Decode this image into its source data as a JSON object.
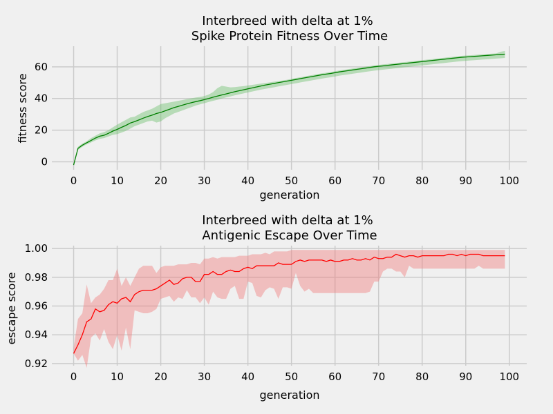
{
  "chart_data": [
    {
      "type": "line",
      "title_line1": "Interbreed with delta at 1%",
      "title_line2": "Spike Protein Fitness Over Time",
      "xlabel": "generation",
      "ylabel": "fitness score",
      "xlim": [
        -5,
        104
      ],
      "ylim": [
        -5,
        73
      ],
      "xticks": [
        0,
        10,
        20,
        30,
        40,
        50,
        60,
        70,
        80,
        90,
        100
      ],
      "yticks": [
        0,
        20,
        40,
        60
      ],
      "line_color": "#007f00",
      "band_color": "#70c070",
      "series": [
        {
          "x": [
            0,
            1,
            2,
            3,
            4,
            5,
            6,
            7,
            8,
            9,
            10,
            11,
            12,
            13,
            14,
            15,
            16,
            17,
            18,
            19,
            20,
            21,
            22,
            23,
            24,
            25,
            26,
            27,
            28,
            29,
            30,
            31,
            32,
            33,
            34,
            35,
            36,
            37,
            38,
            39,
            40,
            41,
            42,
            43,
            44,
            45,
            46,
            47,
            48,
            49,
            50,
            51,
            52,
            53,
            54,
            55,
            56,
            57,
            58,
            59,
            60,
            61,
            62,
            63,
            64,
            65,
            66,
            67,
            68,
            69,
            70,
            71,
            72,
            73,
            74,
            75,
            76,
            77,
            78,
            79,
            80,
            81,
            82,
            83,
            84,
            85,
            86,
            87,
            88,
            89,
            90,
            91,
            92,
            93,
            94,
            95,
            96,
            97,
            98,
            99
          ],
          "values": [
            -2,
            8.5,
            10.5,
            12,
            13.5,
            15,
            16.2,
            16.8,
            18,
            19.4,
            20.5,
            21.8,
            23,
            24.5,
            25.4,
            26.5,
            27.6,
            28.6,
            29.5,
            30.5,
            31.2,
            32.2,
            33.2,
            34.2,
            35,
            35.8,
            36.6,
            37.3,
            38,
            38.6,
            39.3,
            40,
            40.8,
            41.5,
            42.2,
            42.9,
            43.6,
            44.3,
            44.9,
            45.5,
            46.1,
            46.7,
            47.3,
            47.9,
            48.5,
            49,
            49.5,
            50,
            50.5,
            51,
            51.5,
            52,
            52.5,
            53,
            53.5,
            54,
            54.5,
            55,
            55.4,
            55.8,
            56.3,
            56.8,
            57.2,
            57.6,
            58,
            58.4,
            58.8,
            59.2,
            59.6,
            60,
            60.3,
            60.6,
            60.9,
            61.2,
            61.5,
            61.8,
            62.1,
            62.4,
            62.7,
            63,
            63.3,
            63.6,
            63.9,
            64.2,
            64.5,
            64.8,
            65.1,
            65.4,
            65.7,
            66,
            66.2,
            66.4,
            66.6,
            66.8,
            67,
            67.2,
            67.4,
            67.6,
            67.8,
            68
          ],
          "lower": [
            -2,
            7.5,
            9.5,
            11,
            12.2,
            13.5,
            14.5,
            15,
            16,
            17,
            17.5,
            18.5,
            19.5,
            21,
            22.5,
            23.5,
            24.5,
            25.5,
            26,
            24.8,
            25.5,
            27.5,
            29,
            30.5,
            31.5,
            32.5,
            33.5,
            34.5,
            35.5,
            36.3,
            37,
            37.8,
            38.5,
            39.2,
            40,
            40.7,
            41.3,
            42,
            42.6,
            43.2,
            43.8,
            44.4,
            45,
            45.6,
            46.1,
            46.6,
            47.1,
            47.6,
            48.1,
            48.6,
            49.1,
            49.6,
            50.1,
            50.6,
            51.1,
            51.6,
            52.1,
            52.6,
            53,
            53.4,
            53.9,
            54.4,
            54.8,
            55.2,
            55.6,
            56,
            56.4,
            56.8,
            57.2,
            57.6,
            57.9,
            58.2,
            58.5,
            58.8,
            59.1,
            59.4,
            59.7,
            60,
            60.3,
            60.6,
            60.9,
            61.2,
            61.5,
            61.8,
            62.1,
            62.4,
            62.7,
            63,
            63.3,
            63.6,
            63.8,
            64,
            64.2,
            64.4,
            64.6,
            64.8,
            65,
            65.2,
            65.4,
            65.6
          ],
          "upper": [
            -1,
            9.5,
            11.5,
            13,
            15,
            16.5,
            18,
            18.8,
            20,
            21.8,
            23.5,
            25,
            26.5,
            28,
            28.5,
            30,
            31.5,
            32.5,
            33.5,
            35,
            36.5,
            37,
            37.5,
            38,
            38.5,
            39,
            39.6,
            40.1,
            40.6,
            41,
            41.5,
            42.5,
            44,
            46.5,
            48,
            47.5,
            47,
            47.2,
            47.5,
            47.8,
            48.2,
            48.6,
            49,
            49.4,
            49.8,
            50.2,
            50.6,
            51,
            51.4,
            51.8,
            52.4,
            52.9,
            53.4,
            53.9,
            54.4,
            54.9,
            55.4,
            55.9,
            56.3,
            56.7,
            57.2,
            57.7,
            58.1,
            58.5,
            58.9,
            59.3,
            59.7,
            60.1,
            60.5,
            60.9,
            61.2,
            61.5,
            61.8,
            62.1,
            62.4,
            62.7,
            63,
            63.3,
            63.6,
            63.9,
            64.2,
            64.5,
            64.8,
            65.1,
            65.4,
            65.7,
            66,
            66.3,
            66.6,
            66.9,
            67.1,
            67.3,
            67.5,
            67.7,
            67.9,
            68.1,
            68.3,
            68.5,
            69.5,
            70
          ]
        }
      ]
    },
    {
      "type": "line",
      "title_line1": "Interbreed with delta at 1%",
      "title_line2": "Antigenic Escape Over Time",
      "xlabel": "generation",
      "ylabel": "escape score",
      "xlim": [
        -5,
        104
      ],
      "ylim": [
        0.9185,
        1.002
      ],
      "xticks": [
        0,
        10,
        20,
        30,
        40,
        50,
        60,
        70,
        80,
        90,
        100
      ],
      "yticks": [
        0.92,
        0.94,
        0.96,
        0.98,
        1.0
      ],
      "ytick_labels": [
        "0.92",
        "0.94",
        "0.96",
        "0.98",
        "1.00"
      ],
      "line_color": "#ff0000",
      "band_color": "#f08080",
      "series": [
        {
          "x": [
            0,
            1,
            2,
            3,
            4,
            5,
            6,
            7,
            8,
            9,
            10,
            11,
            12,
            13,
            14,
            15,
            16,
            17,
            18,
            19,
            20,
            21,
            22,
            23,
            24,
            25,
            26,
            27,
            28,
            29,
            30,
            31,
            32,
            33,
            34,
            35,
            36,
            37,
            38,
            39,
            40,
            41,
            42,
            43,
            44,
            45,
            46,
            47,
            48,
            49,
            50,
            51,
            52,
            53,
            54,
            55,
            56,
            57,
            58,
            59,
            60,
            61,
            62,
            63,
            64,
            65,
            66,
            67,
            68,
            69,
            70,
            71,
            72,
            73,
            74,
            75,
            76,
            77,
            78,
            79,
            80,
            81,
            82,
            83,
            84,
            85,
            86,
            87,
            88,
            89,
            90,
            91,
            92,
            93,
            94,
            95,
            96,
            97,
            98,
            99
          ],
          "values": [
            0.927,
            0.933,
            0.94,
            0.949,
            0.951,
            0.958,
            0.956,
            0.957,
            0.961,
            0.963,
            0.962,
            0.965,
            0.966,
            0.963,
            0.968,
            0.97,
            0.971,
            0.971,
            0.971,
            0.972,
            0.974,
            0.976,
            0.978,
            0.975,
            0.976,
            0.979,
            0.98,
            0.98,
            0.977,
            0.977,
            0.982,
            0.982,
            0.984,
            0.982,
            0.982,
            0.984,
            0.985,
            0.984,
            0.984,
            0.986,
            0.987,
            0.986,
            0.988,
            0.988,
            0.988,
            0.988,
            0.988,
            0.99,
            0.989,
            0.989,
            0.989,
            0.991,
            0.992,
            0.991,
            0.992,
            0.992,
            0.992,
            0.992,
            0.991,
            0.992,
            0.991,
            0.991,
            0.992,
            0.992,
            0.993,
            0.992,
            0.992,
            0.993,
            0.992,
            0.994,
            0.993,
            0.993,
            0.994,
            0.994,
            0.996,
            0.995,
            0.994,
            0.995,
            0.995,
            0.994,
            0.995,
            0.995,
            0.995,
            0.995,
            0.995,
            0.995,
            0.996,
            0.996,
            0.995,
            0.996,
            0.995,
            0.996,
            0.996,
            0.996,
            0.995,
            0.995,
            0.995,
            0.995,
            0.995,
            0.995
          ],
          "lower": [
            0.927,
            0.922,
            0.926,
            0.917,
            0.938,
            0.941,
            0.936,
            0.944,
            0.935,
            0.93,
            0.94,
            0.929,
            0.945,
            0.93,
            0.957,
            0.956,
            0.955,
            0.955,
            0.956,
            0.958,
            0.965,
            0.966,
            0.967,
            0.963,
            0.966,
            0.965,
            0.971,
            0.966,
            0.966,
            0.962,
            0.966,
            0.961,
            0.97,
            0.966,
            0.965,
            0.965,
            0.972,
            0.974,
            0.965,
            0.965,
            0.977,
            0.976,
            0.967,
            0.966,
            0.971,
            0.973,
            0.972,
            0.965,
            0.973,
            0.973,
            0.972,
            0.983,
            0.974,
            0.97,
            0.972,
            0.969,
            0.969,
            0.969,
            0.969,
            0.969,
            0.969,
            0.969,
            0.969,
            0.969,
            0.969,
            0.969,
            0.969,
            0.969,
            0.97,
            0.977,
            0.977,
            0.984,
            0.986,
            0.986,
            0.984,
            0.984,
            0.98,
            0.988,
            0.986,
            0.986,
            0.986,
            0.986,
            0.986,
            0.986,
            0.986,
            0.986,
            0.986,
            0.986,
            0.986,
            0.986,
            0.986,
            0.986,
            0.986,
            0.988,
            0.986,
            0.986,
            0.986,
            0.986,
            0.986,
            0.986
          ],
          "upper": [
            0.931,
            0.951,
            0.955,
            0.975,
            0.962,
            0.966,
            0.968,
            0.972,
            0.978,
            0.978,
            0.986,
            0.974,
            0.98,
            0.974,
            0.98,
            0.986,
            0.988,
            0.988,
            0.988,
            0.983,
            0.987,
            0.988,
            0.988,
            0.988,
            0.989,
            0.989,
            0.989,
            0.99,
            0.99,
            0.989,
            0.993,
            0.993,
            0.994,
            0.993,
            0.994,
            0.994,
            0.994,
            0.994,
            0.995,
            0.995,
            0.995,
            0.996,
            0.996,
            0.996,
            0.997,
            0.996,
            0.998,
            0.998,
            0.998,
            0.998,
            0.999,
            0.999,
            0.999,
            0.999,
            0.999,
            0.999,
            0.999,
            0.999,
            0.999,
            0.999,
            0.999,
            0.999,
            0.999,
            0.999,
            0.999,
            0.999,
            0.999,
            0.999,
            0.999,
            0.999,
            0.999,
            0.999,
            0.999,
            0.999,
            0.999,
            0.999,
            0.999,
            0.999,
            0.999,
            0.999,
            0.999,
            0.999,
            0.999,
            0.999,
            0.999,
            0.999,
            0.999,
            0.999,
            0.999,
            0.999,
            0.999,
            0.999,
            0.999,
            0.999,
            0.999,
            0.999,
            0.999,
            0.999,
            0.999,
            0.999
          ]
        }
      ]
    }
  ]
}
